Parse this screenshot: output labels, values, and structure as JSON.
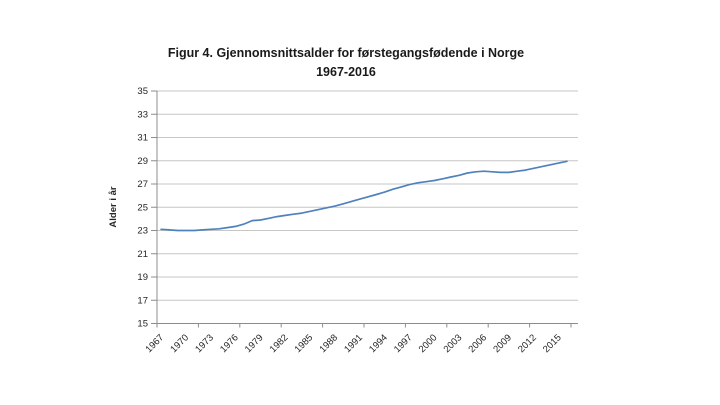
{
  "chart_data": {
    "type": "line",
    "title": "Figur 4. Gjennomsnittsalder for førstegangsfødende i Norge",
    "subtitle": "1967-2016",
    "xlabel": "",
    "ylabel": "Alder i år",
    "ylim": [
      15,
      35
    ],
    "ytick_interval": 2,
    "y_ticks": [
      15,
      17,
      19,
      21,
      23,
      25,
      27,
      29,
      31,
      33,
      35
    ],
    "x_tick_labels": [
      "1967",
      "1970",
      "1973",
      "1976",
      "1979",
      "1982",
      "1985",
      "1988",
      "1991",
      "1994",
      "1997",
      "2000",
      "2003",
      "2006",
      "2009",
      "2012",
      "2015"
    ],
    "x_label_interval": 3,
    "grid": "horizontal-only",
    "legend": "none",
    "x": [
      1967,
      1968,
      1969,
      1970,
      1971,
      1972,
      1973,
      1974,
      1975,
      1976,
      1977,
      1978,
      1979,
      1980,
      1981,
      1982,
      1983,
      1984,
      1985,
      1986,
      1987,
      1988,
      1989,
      1990,
      1991,
      1992,
      1993,
      1994,
      1995,
      1996,
      1997,
      1998,
      1999,
      2000,
      2001,
      2002,
      2003,
      2004,
      2005,
      2006,
      2007,
      2008,
      2009,
      2010,
      2011,
      2012,
      2013,
      2014,
      2015,
      2016
    ],
    "values": [
      23.1,
      23.05,
      23.0,
      23.0,
      23.0,
      23.05,
      23.1,
      23.15,
      23.25,
      23.35,
      23.55,
      23.85,
      23.9,
      24.05,
      24.2,
      24.3,
      24.4,
      24.5,
      24.65,
      24.8,
      24.95,
      25.1,
      25.3,
      25.5,
      25.7,
      25.9,
      26.1,
      26.3,
      26.55,
      26.75,
      26.95,
      27.1,
      27.2,
      27.3,
      27.45,
      27.6,
      27.75,
      27.95,
      28.05,
      28.1,
      28.05,
      28.0,
      28.0,
      28.1,
      28.2,
      28.35,
      28.5,
      28.65,
      28.8,
      28.95
    ],
    "colors": {
      "line": "#4f81bd",
      "gridline": "#c6c6c6",
      "axis": "#8c8c8c",
      "tick_text": "#262626",
      "title_text": "#1a1a1a",
      "background": "#ffffff"
    }
  }
}
